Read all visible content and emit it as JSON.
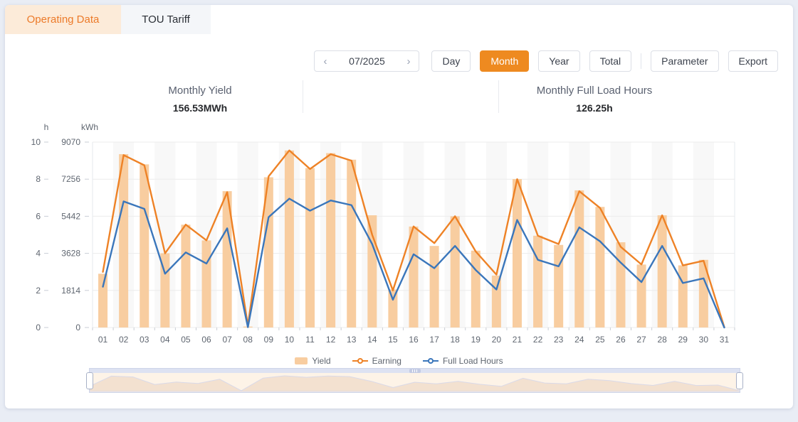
{
  "tabs": [
    {
      "label": "Operating Data",
      "active": true
    },
    {
      "label": "TOU Tariff",
      "active": false
    }
  ],
  "controls": {
    "prev_icon": "‹",
    "next_icon": "›",
    "date_value": "07/2025",
    "period": [
      {
        "label": "Day",
        "active": false
      },
      {
        "label": "Month",
        "active": true
      },
      {
        "label": "Year",
        "active": false
      },
      {
        "label": "Total",
        "active": false
      }
    ],
    "parameter_label": "Parameter",
    "export_label": "Export",
    "active_color": "#ee8a20"
  },
  "stats": [
    {
      "label": "Monthly Yield",
      "value": "156.53MWh"
    },
    {
      "label": "Monthly Full Load Hours",
      "value": "126.25h"
    }
  ],
  "chart_data": {
    "type": "bar",
    "title": "",
    "categories": [
      "01",
      "02",
      "03",
      "04",
      "05",
      "06",
      "07",
      "08",
      "09",
      "10",
      "11",
      "12",
      "13",
      "14",
      "15",
      "16",
      "17",
      "18",
      "19",
      "20",
      "21",
      "22",
      "23",
      "24",
      "25",
      "26",
      "27",
      "28",
      "29",
      "30",
      "31"
    ],
    "series": [
      {
        "name": "Yield",
        "type": "bar",
        "axis": "kWh",
        "color": "#f8cda0",
        "values": [
          2630,
          8480,
          7980,
          3630,
          5030,
          4260,
          6670,
          45,
          7350,
          8660,
          7800,
          8530,
          8210,
          5490,
          1860,
          4940,
          3990,
          5440,
          3760,
          2540,
          7260,
          4490,
          4040,
          6710,
          5900,
          4170,
          3080,
          5490,
          3040,
          3310,
          0
        ]
      },
      {
        "name": "Earning",
        "type": "line",
        "axis": "h-scale",
        "color": "#ee8226",
        "values": [
          3.0,
          9.3,
          8.75,
          4.0,
          5.55,
          4.7,
          7.3,
          0.1,
          8.15,
          9.55,
          8.55,
          9.35,
          9.0,
          5.0,
          2.0,
          5.45,
          4.55,
          6.0,
          4.1,
          2.85,
          8.0,
          4.95,
          4.5,
          7.35,
          6.45,
          4.35,
          3.4,
          6.05,
          3.35,
          3.6,
          0.02
        ]
      },
      {
        "name": "Full Load Hours",
        "type": "line",
        "axis": "h",
        "color": "#3a76bb",
        "values": [
          2.2,
          6.8,
          6.4,
          2.9,
          4.05,
          3.45,
          5.35,
          0.02,
          5.95,
          6.95,
          6.3,
          6.85,
          6.6,
          4.5,
          1.5,
          3.95,
          3.2,
          4.4,
          3.1,
          2.05,
          5.8,
          3.65,
          3.3,
          5.4,
          4.65,
          3.5,
          2.45,
          4.4,
          2.4,
          2.65,
          0
        ]
      }
    ],
    "y_axes": [
      {
        "title": "h",
        "ticks": [
          0,
          2,
          4,
          6,
          8,
          10
        ],
        "max": 10
      },
      {
        "title": "kWh",
        "ticks": [
          0,
          1814,
          3628,
          5442,
          7256,
          9070
        ],
        "max": 9070
      }
    ],
    "legend": [
      "Yield",
      "Earning",
      "Full Load Hours"
    ],
    "legend_position": "bottom",
    "grid": true
  }
}
